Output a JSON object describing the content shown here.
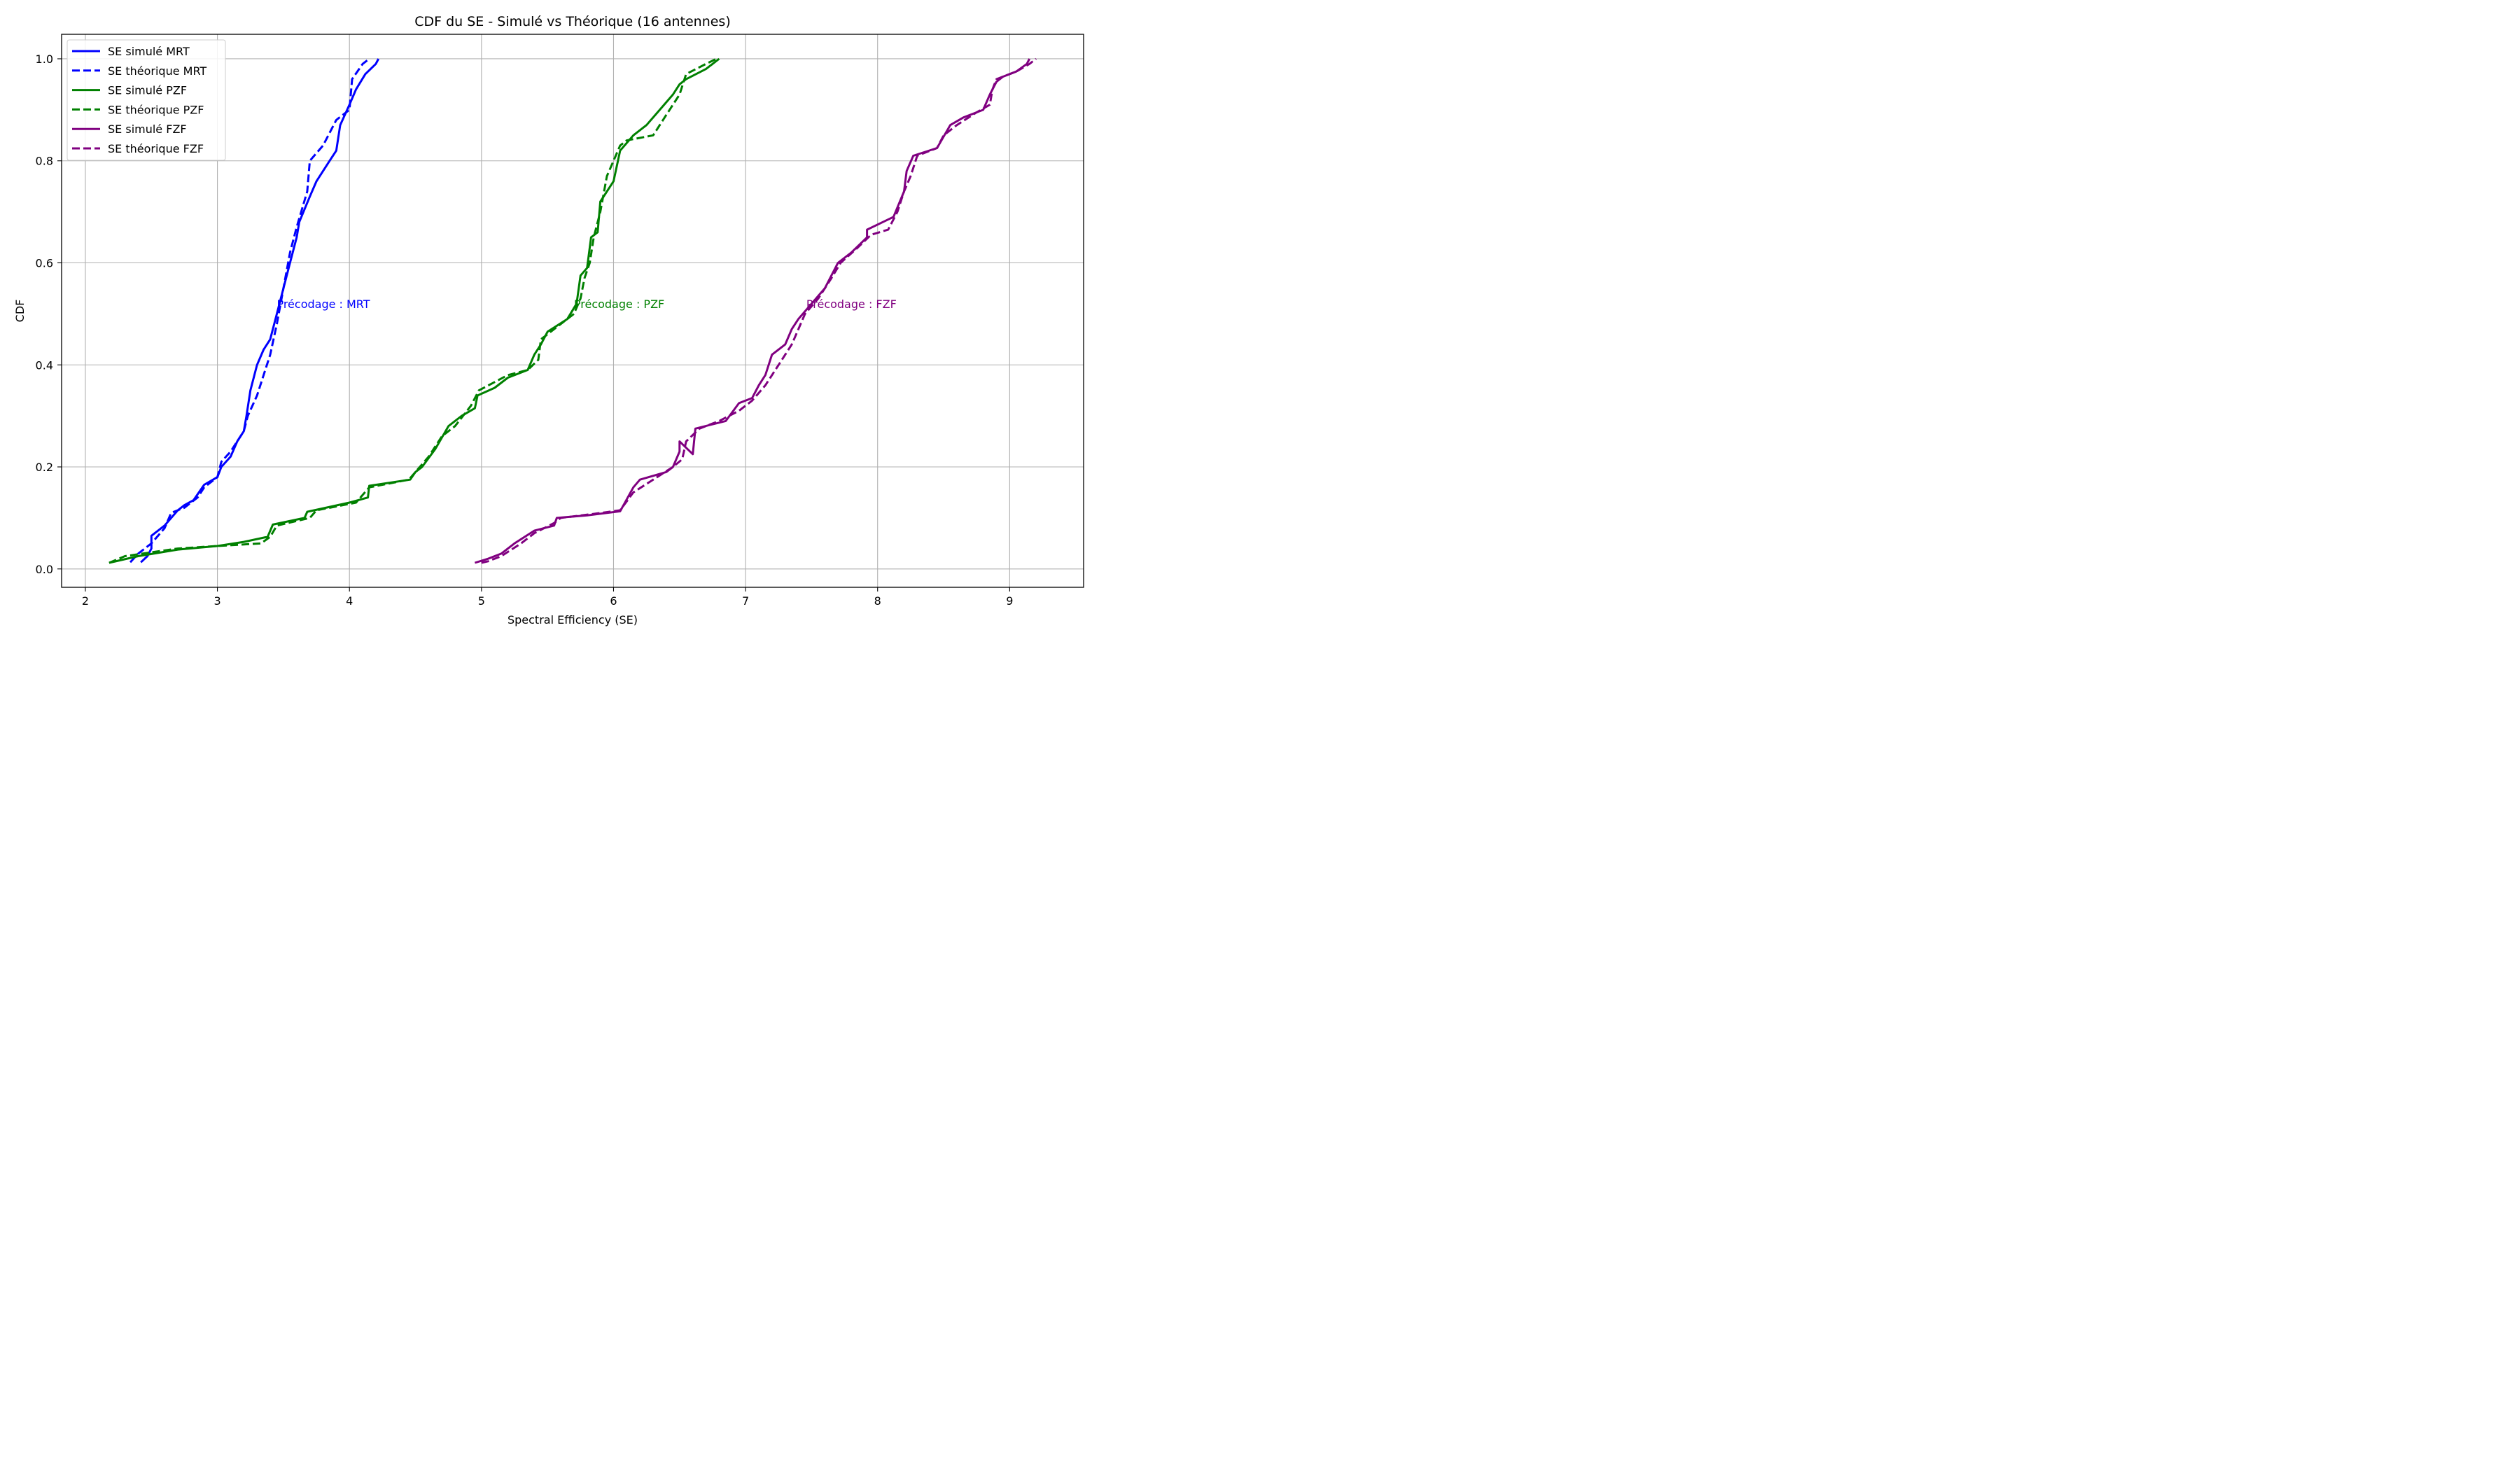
{
  "chart_data": {
    "type": "line",
    "title": "CDF du SE - Simulé vs Théorique (16 antennes)",
    "xlabel": "Spectral Efficiency (SE)",
    "ylabel": "CDF",
    "xlim": [
      1.82,
      9.56
    ],
    "ylim": [
      -0.036,
      1.048
    ],
    "xticks": [
      "2",
      "3",
      "4",
      "5",
      "6",
      "7",
      "8",
      "9"
    ],
    "yticks": [
      "0.0",
      "0.2",
      "0.4",
      "0.6",
      "0.8",
      "1.0"
    ],
    "grid": true,
    "legend_position": "top-left",
    "series": [
      {
        "name": "SE simulé MRT",
        "color": "#0000ff",
        "style": "solid",
        "points": [
          [
            2.42,
            0.013
          ],
          [
            2.47,
            0.025
          ],
          [
            2.5,
            0.04
          ],
          [
            2.5,
            0.065
          ],
          [
            2.6,
            0.085
          ],
          [
            2.7,
            0.115
          ],
          [
            2.75,
            0.125
          ],
          [
            2.82,
            0.135
          ],
          [
            2.9,
            0.165
          ],
          [
            3.0,
            0.18
          ],
          [
            3.03,
            0.2
          ],
          [
            3.1,
            0.22
          ],
          [
            3.15,
            0.25
          ],
          [
            3.2,
            0.27
          ],
          [
            3.22,
            0.3
          ],
          [
            3.25,
            0.35
          ],
          [
            3.3,
            0.4
          ],
          [
            3.35,
            0.43
          ],
          [
            3.4,
            0.45
          ],
          [
            3.45,
            0.5
          ],
          [
            3.5,
            0.55
          ],
          [
            3.55,
            0.6
          ],
          [
            3.6,
            0.65
          ],
          [
            3.62,
            0.68
          ],
          [
            3.7,
            0.73
          ],
          [
            3.75,
            0.76
          ],
          [
            3.8,
            0.78
          ],
          [
            3.85,
            0.8
          ],
          [
            3.9,
            0.82
          ],
          [
            3.93,
            0.87
          ],
          [
            4.0,
            0.91
          ],
          [
            4.05,
            0.94
          ],
          [
            4.12,
            0.97
          ],
          [
            4.2,
            0.99
          ],
          [
            4.22,
            1.0
          ]
        ]
      },
      {
        "name": "SE théorique MRT",
        "color": "#0000ff",
        "style": "dashed",
        "points": [
          [
            2.34,
            0.013
          ],
          [
            2.4,
            0.03
          ],
          [
            2.5,
            0.05
          ],
          [
            2.6,
            0.08
          ],
          [
            2.65,
            0.11
          ],
          [
            2.75,
            0.12
          ],
          [
            2.85,
            0.14
          ],
          [
            2.9,
            0.16
          ],
          [
            3.0,
            0.18
          ],
          [
            3.03,
            0.21
          ],
          [
            3.1,
            0.23
          ],
          [
            3.2,
            0.27
          ],
          [
            3.23,
            0.3
          ],
          [
            3.3,
            0.34
          ],
          [
            3.35,
            0.38
          ],
          [
            3.4,
            0.42
          ],
          [
            3.45,
            0.48
          ],
          [
            3.5,
            0.55
          ],
          [
            3.55,
            0.62
          ],
          [
            3.6,
            0.67
          ],
          [
            3.68,
            0.74
          ],
          [
            3.7,
            0.8
          ],
          [
            3.8,
            0.83
          ],
          [
            3.9,
            0.88
          ],
          [
            4.0,
            0.9
          ],
          [
            4.02,
            0.96
          ],
          [
            4.1,
            0.99
          ],
          [
            4.15,
            1.0
          ]
        ]
      },
      {
        "name": "SE simulé PZF",
        "color": "#008000",
        "style": "solid",
        "points": [
          [
            2.18,
            0.012
          ],
          [
            2.4,
            0.025
          ],
          [
            2.7,
            0.038
          ],
          [
            3.0,
            0.045
          ],
          [
            3.2,
            0.053
          ],
          [
            3.38,
            0.063
          ],
          [
            3.42,
            0.087
          ],
          [
            3.66,
            0.1
          ],
          [
            3.68,
            0.112
          ],
          [
            4.0,
            0.13
          ],
          [
            4.14,
            0.14
          ],
          [
            4.15,
            0.163
          ],
          [
            4.46,
            0.175
          ],
          [
            4.5,
            0.19
          ],
          [
            4.55,
            0.2
          ],
          [
            4.65,
            0.235
          ],
          [
            4.75,
            0.28
          ],
          [
            4.85,
            0.3
          ],
          [
            4.95,
            0.315
          ],
          [
            4.97,
            0.34
          ],
          [
            5.1,
            0.355
          ],
          [
            5.2,
            0.375
          ],
          [
            5.35,
            0.39
          ],
          [
            5.4,
            0.42
          ],
          [
            5.45,
            0.44
          ],
          [
            5.5,
            0.465
          ],
          [
            5.65,
            0.49
          ],
          [
            5.72,
            0.52
          ],
          [
            5.75,
            0.575
          ],
          [
            5.8,
            0.59
          ],
          [
            5.83,
            0.65
          ],
          [
            5.88,
            0.66
          ],
          [
            5.9,
            0.72
          ],
          [
            6.0,
            0.76
          ],
          [
            6.05,
            0.82
          ],
          [
            6.15,
            0.85
          ],
          [
            6.25,
            0.87
          ],
          [
            6.35,
            0.9
          ],
          [
            6.45,
            0.93
          ],
          [
            6.5,
            0.95
          ],
          [
            6.55,
            0.96
          ],
          [
            6.7,
            0.98
          ],
          [
            6.8,
            1.0
          ]
        ]
      },
      {
        "name": "SE théorique PZF",
        "color": "#008000",
        "style": "dashed",
        "points": [
          [
            2.18,
            0.012
          ],
          [
            2.3,
            0.025
          ],
          [
            2.7,
            0.04
          ],
          [
            3.0,
            0.045
          ],
          [
            3.33,
            0.05
          ],
          [
            3.4,
            0.063
          ],
          [
            3.45,
            0.085
          ],
          [
            3.7,
            0.1
          ],
          [
            3.75,
            0.115
          ],
          [
            4.05,
            0.13
          ],
          [
            4.15,
            0.16
          ],
          [
            4.45,
            0.175
          ],
          [
            4.5,
            0.19
          ],
          [
            4.6,
            0.22
          ],
          [
            4.7,
            0.26
          ],
          [
            4.8,
            0.28
          ],
          [
            4.92,
            0.32
          ],
          [
            4.98,
            0.35
          ],
          [
            5.2,
            0.38
          ],
          [
            5.35,
            0.39
          ],
          [
            5.43,
            0.41
          ],
          [
            5.45,
            0.45
          ],
          [
            5.55,
            0.47
          ],
          [
            5.7,
            0.5
          ],
          [
            5.75,
            0.53
          ],
          [
            5.78,
            0.57
          ],
          [
            5.82,
            0.6
          ],
          [
            5.85,
            0.65
          ],
          [
            5.9,
            0.7
          ],
          [
            5.95,
            0.77
          ],
          [
            6.05,
            0.83
          ],
          [
            6.1,
            0.84
          ],
          [
            6.3,
            0.85
          ],
          [
            6.4,
            0.89
          ],
          [
            6.5,
            0.93
          ],
          [
            6.55,
            0.97
          ],
          [
            6.7,
            0.99
          ],
          [
            6.78,
            1.0
          ]
        ]
      },
      {
        "name": "SE simulé FZF",
        "color": "#800080",
        "style": "solid",
        "points": [
          [
            4.95,
            0.012
          ],
          [
            5.05,
            0.02
          ],
          [
            5.15,
            0.03
          ],
          [
            5.25,
            0.05
          ],
          [
            5.4,
            0.075
          ],
          [
            5.55,
            0.085
          ],
          [
            5.57,
            0.1
          ],
          [
            5.8,
            0.105
          ],
          [
            6.05,
            0.113
          ],
          [
            6.15,
            0.16
          ],
          [
            6.2,
            0.175
          ],
          [
            6.4,
            0.19
          ],
          [
            6.45,
            0.2
          ],
          [
            6.5,
            0.23
          ],
          [
            6.5,
            0.25
          ],
          [
            6.6,
            0.225
          ],
          [
            6.62,
            0.275
          ],
          [
            6.85,
            0.29
          ],
          [
            6.95,
            0.325
          ],
          [
            7.05,
            0.335
          ],
          [
            7.1,
            0.36
          ],
          [
            7.15,
            0.38
          ],
          [
            7.2,
            0.42
          ],
          [
            7.3,
            0.44
          ],
          [
            7.35,
            0.47
          ],
          [
            7.4,
            0.49
          ],
          [
            7.5,
            0.52
          ],
          [
            7.6,
            0.55
          ],
          [
            7.65,
            0.575
          ],
          [
            7.7,
            0.6
          ],
          [
            7.8,
            0.62
          ],
          [
            7.92,
            0.65
          ],
          [
            7.92,
            0.665
          ],
          [
            8.12,
            0.69
          ],
          [
            8.2,
            0.74
          ],
          [
            8.22,
            0.78
          ],
          [
            8.27,
            0.81
          ],
          [
            8.45,
            0.825
          ],
          [
            8.55,
            0.87
          ],
          [
            8.65,
            0.885
          ],
          [
            8.8,
            0.9
          ],
          [
            8.85,
            0.93
          ],
          [
            8.9,
            0.955
          ],
          [
            8.95,
            0.965
          ],
          [
            9.05,
            0.975
          ],
          [
            9.13,
            0.99
          ],
          [
            9.15,
            1.0
          ]
        ]
      },
      {
        "name": "SE théorique FZF",
        "color": "#800080",
        "style": "dashed",
        "points": [
          [
            5.0,
            0.012
          ],
          [
            5.05,
            0.015
          ],
          [
            5.15,
            0.025
          ],
          [
            5.3,
            0.05
          ],
          [
            5.4,
            0.07
          ],
          [
            5.55,
            0.09
          ],
          [
            5.6,
            0.1
          ],
          [
            5.85,
            0.108
          ],
          [
            6.05,
            0.115
          ],
          [
            6.15,
            0.15
          ],
          [
            6.3,
            0.175
          ],
          [
            6.45,
            0.2
          ],
          [
            6.52,
            0.215
          ],
          [
            6.55,
            0.25
          ],
          [
            6.65,
            0.275
          ],
          [
            6.8,
            0.29
          ],
          [
            6.95,
            0.31
          ],
          [
            7.05,
            0.33
          ],
          [
            7.15,
            0.36
          ],
          [
            7.25,
            0.4
          ],
          [
            7.35,
            0.44
          ],
          [
            7.4,
            0.47
          ],
          [
            7.45,
            0.5
          ],
          [
            7.55,
            0.53
          ],
          [
            7.65,
            0.57
          ],
          [
            7.72,
            0.6
          ],
          [
            7.85,
            0.63
          ],
          [
            7.95,
            0.655
          ],
          [
            8.08,
            0.665
          ],
          [
            8.15,
            0.7
          ],
          [
            8.2,
            0.74
          ],
          [
            8.25,
            0.77
          ],
          [
            8.3,
            0.81
          ],
          [
            8.45,
            0.825
          ],
          [
            8.5,
            0.85
          ],
          [
            8.6,
            0.87
          ],
          [
            8.75,
            0.895
          ],
          [
            8.85,
            0.91
          ],
          [
            8.87,
            0.94
          ],
          [
            8.9,
            0.96
          ],
          [
            9.05,
            0.975
          ],
          [
            9.15,
            0.99
          ],
          [
            9.2,
            1.0
          ]
        ]
      }
    ],
    "annotations": [
      {
        "text": "Précodage : MRT",
        "x": 3.45,
        "y": 0.52,
        "color": "#0000ff"
      },
      {
        "text": "Précodage : PZF",
        "x": 5.7,
        "y": 0.52,
        "color": "#008000"
      },
      {
        "text": "Précodage : FZF",
        "x": 7.46,
        "y": 0.52,
        "color": "#800080"
      }
    ]
  }
}
